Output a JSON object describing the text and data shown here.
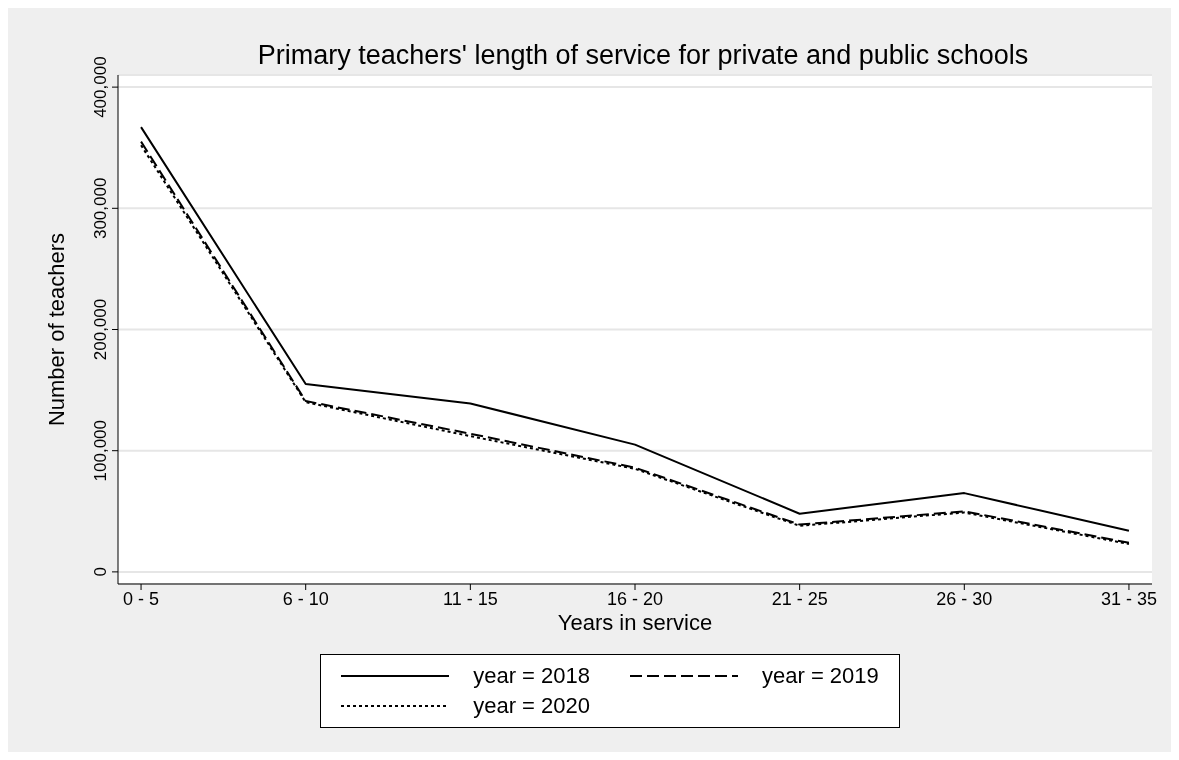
{
  "chart_data": {
    "type": "line",
    "title": "Primary teachers' length of service for private and public schools",
    "xlabel": "Years in service",
    "ylabel": "Number of teachers",
    "categories": [
      "0 - 5",
      "6 - 10",
      "11 - 15",
      "16 - 20",
      "21 - 25",
      "26 - 30",
      "31 - 35"
    ],
    "series": [
      {
        "name": "year = 2018",
        "color": "#000000",
        "line_style": "solid",
        "values": [
          367000,
          155000,
          139000,
          105000,
          48000,
          65000,
          34000
        ]
      },
      {
        "name": "year = 2019",
        "color": "#000000",
        "line_style": "dashed",
        "values": [
          355000,
          141000,
          114000,
          86000,
          39000,
          50000,
          24000
        ]
      },
      {
        "name": "year = 2020",
        "color": "#000000",
        "line_style": "dotted",
        "values": [
          352000,
          140000,
          112000,
          85000,
          38000,
          49000,
          23000
        ]
      }
    ],
    "ylim": [
      -10000,
      410000
    ],
    "yticks": [
      {
        "value": 0,
        "label": "0"
      },
      {
        "value": 100000,
        "label": "100,000"
      },
      {
        "value": 200000,
        "label": "200,000"
      },
      {
        "value": 300000,
        "label": "300,000"
      },
      {
        "value": 400000,
        "label": "400,000"
      }
    ],
    "grid": "y",
    "legend": "bottom",
    "marker": "none"
  }
}
